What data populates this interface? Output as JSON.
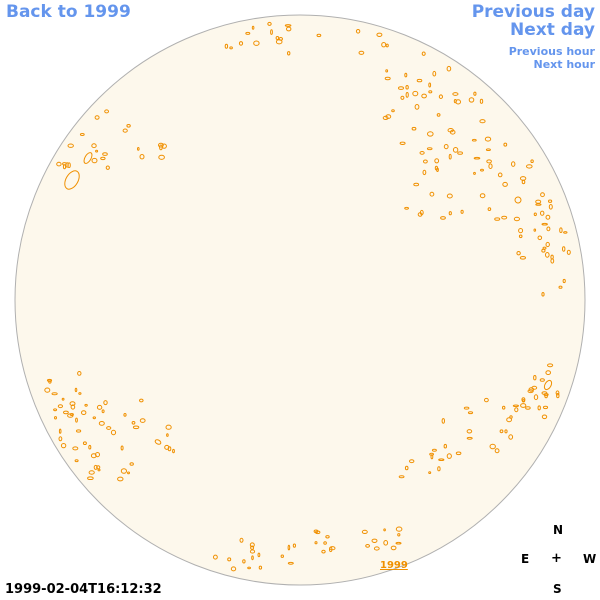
{
  "nav": {
    "back": "Back to 1999",
    "previous_day": "Previous day",
    "next_day": "Next day",
    "previous_hour": "Previous hour",
    "next_hour": "Next hour"
  },
  "timestamp": "1999-02-04T16:12:32",
  "compass": {
    "north": "N",
    "east": "E",
    "center": "+",
    "west": "W",
    "south": "S"
  },
  "year_link": "1999",
  "colors": {
    "link": "#6495ed",
    "disk_fill": "#fdf8ec",
    "disk_border": "#b0b0b0",
    "contour": "#f09000"
  }
}
